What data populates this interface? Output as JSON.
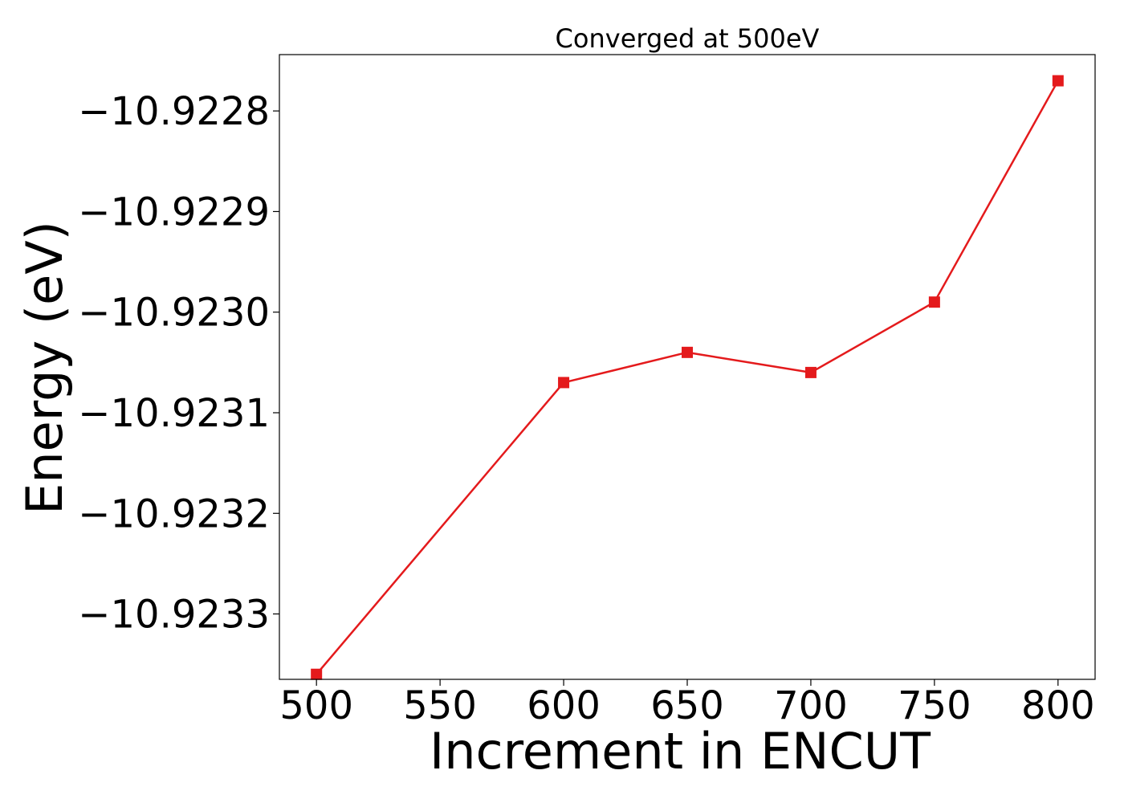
{
  "chart_data": {
    "type": "line",
    "title": "Converged at 500eV",
    "xlabel": "Increment in ENCUT",
    "ylabel": "Energy (eV)",
    "x": [
      500,
      600,
      650,
      700,
      750,
      800
    ],
    "series": [
      {
        "values": [
          -10.92336,
          -10.92307,
          -10.92304,
          -10.92306,
          -10.92299,
          -10.92277
        ],
        "color": "#e41a1c",
        "marker": "square"
      }
    ],
    "x_ticks": [
      500,
      550,
      600,
      650,
      700,
      750,
      800
    ],
    "x_tick_labels": [
      "500",
      "550",
      "600",
      "650",
      "700",
      "750",
      "800"
    ],
    "y_ticks": [
      -10.9233,
      -10.9232,
      -10.9231,
      -10.923,
      -10.9229,
      -10.9228
    ],
    "y_tick_labels": [
      "−10.9233",
      "−10.9232",
      "−10.9231",
      "−10.9230",
      "−10.9229",
      "−10.9228"
    ],
    "xlim": [
      485,
      815
    ],
    "ylim": [
      -10.923365,
      -10.922744
    ],
    "grid": false,
    "legend": false
  }
}
